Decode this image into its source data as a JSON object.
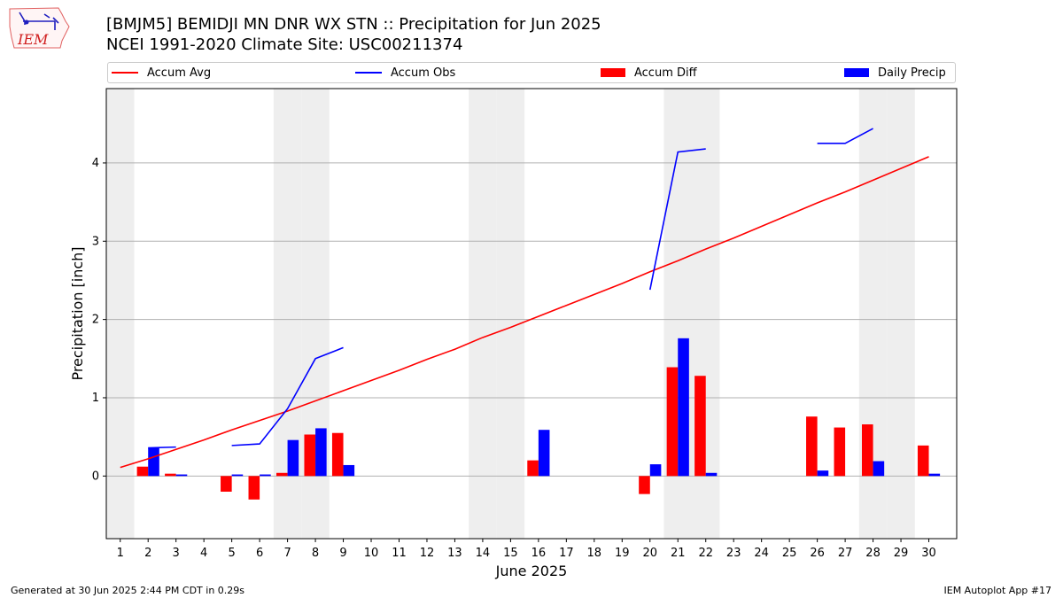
{
  "header": {
    "title": "[BMJM5] BEMIDJI MN DNR WX STN :: Precipitation for Jun 2025",
    "subtitle": "NCEI 1991-2020 Climate Site: USC00211374"
  },
  "logo": {
    "text": "IEM"
  },
  "footer": {
    "left": "Generated at 30 Jun 2025 2:44 PM CDT in 0.29s",
    "right": "IEM Autoplot App #17"
  },
  "colors": {
    "avg": "#ff0000",
    "obs": "#0000ff",
    "diff": "#ff0000",
    "daily": "#0000ff",
    "weekend": "#eeeeee",
    "grid": "#b0b0b0"
  },
  "chart_data": {
    "type": "bar",
    "xlabel": "June 2025",
    "ylabel": "Precipitation [inch]",
    "xlim": [
      0.5,
      31
    ],
    "ylim": [
      -0.8,
      4.95
    ],
    "yticks": [
      0,
      1,
      2,
      3,
      4
    ],
    "x": [
      1,
      2,
      3,
      4,
      5,
      6,
      7,
      8,
      9,
      10,
      11,
      12,
      13,
      14,
      15,
      16,
      17,
      18,
      19,
      20,
      21,
      22,
      23,
      24,
      25,
      26,
      27,
      28,
      29,
      30
    ],
    "weekend_days": [
      1,
      7,
      8,
      14,
      15,
      21,
      22,
      28,
      29
    ],
    "legend": [
      "Accum Avg",
      "Accum Obs",
      "Accum Diff",
      "Daily Precip"
    ],
    "series": [
      {
        "name": "Accum Avg",
        "kind": "line",
        "values": [
          0.11,
          0.22,
          0.34,
          0.46,
          0.59,
          0.71,
          0.83,
          0.96,
          1.09,
          1.22,
          1.35,
          1.49,
          1.62,
          1.77,
          1.9,
          2.04,
          2.18,
          2.32,
          2.46,
          2.61,
          2.75,
          2.9,
          3.04,
          3.19,
          3.34,
          3.49,
          3.63,
          3.78,
          3.93,
          4.08
        ]
      },
      {
        "name": "Accum Obs",
        "kind": "line",
        "values": [
          null,
          0.36,
          0.37,
          null,
          0.39,
          0.41,
          0.86,
          1.5,
          1.64,
          null,
          null,
          null,
          null,
          null,
          null,
          null,
          null,
          null,
          null,
          2.38,
          4.14,
          4.18,
          null,
          null,
          null,
          4.25,
          4.25,
          4.44,
          null,
          null
        ]
      },
      {
        "name": "Accum Diff",
        "kind": "bar",
        "values": [
          0,
          0.12,
          0.03,
          0,
          -0.2,
          -0.3,
          0.04,
          0.53,
          0.55,
          0,
          0,
          0,
          0,
          0,
          0,
          0.2,
          0,
          0,
          0,
          -0.23,
          1.39,
          1.28,
          0,
          0,
          0,
          0.76,
          0.62,
          0.66,
          0,
          0.39
        ]
      },
      {
        "name": "Daily Precip",
        "kind": "bar",
        "values": [
          0,
          0.36,
          0.02,
          0,
          0.02,
          0.02,
          0.46,
          0.61,
          0.14,
          0,
          0,
          0,
          0,
          0,
          0,
          0.59,
          0,
          0,
          0,
          0.15,
          1.76,
          0.04,
          0,
          0,
          0,
          0.07,
          0,
          0.19,
          0,
          0.03
        ]
      }
    ]
  }
}
